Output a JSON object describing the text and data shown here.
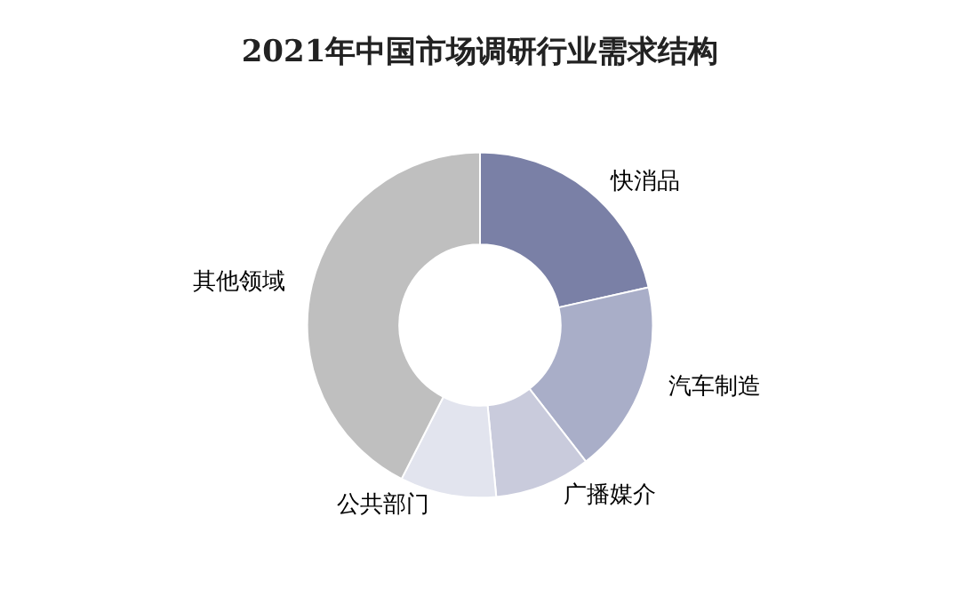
{
  "chart_data": {
    "type": "donut",
    "title": "2021年中国市场调研行业需求结构",
    "categories": [
      "快消品",
      "汽车制造",
      "广播媒介",
      "公共部门",
      "其他领域"
    ],
    "values": [
      21.5,
      18,
      9,
      9,
      42.5
    ],
    "colors": [
      "#7a80a6",
      "#a9aec8",
      "#c9cbdc",
      "#e2e4ee",
      "#bfbfbf"
    ]
  }
}
